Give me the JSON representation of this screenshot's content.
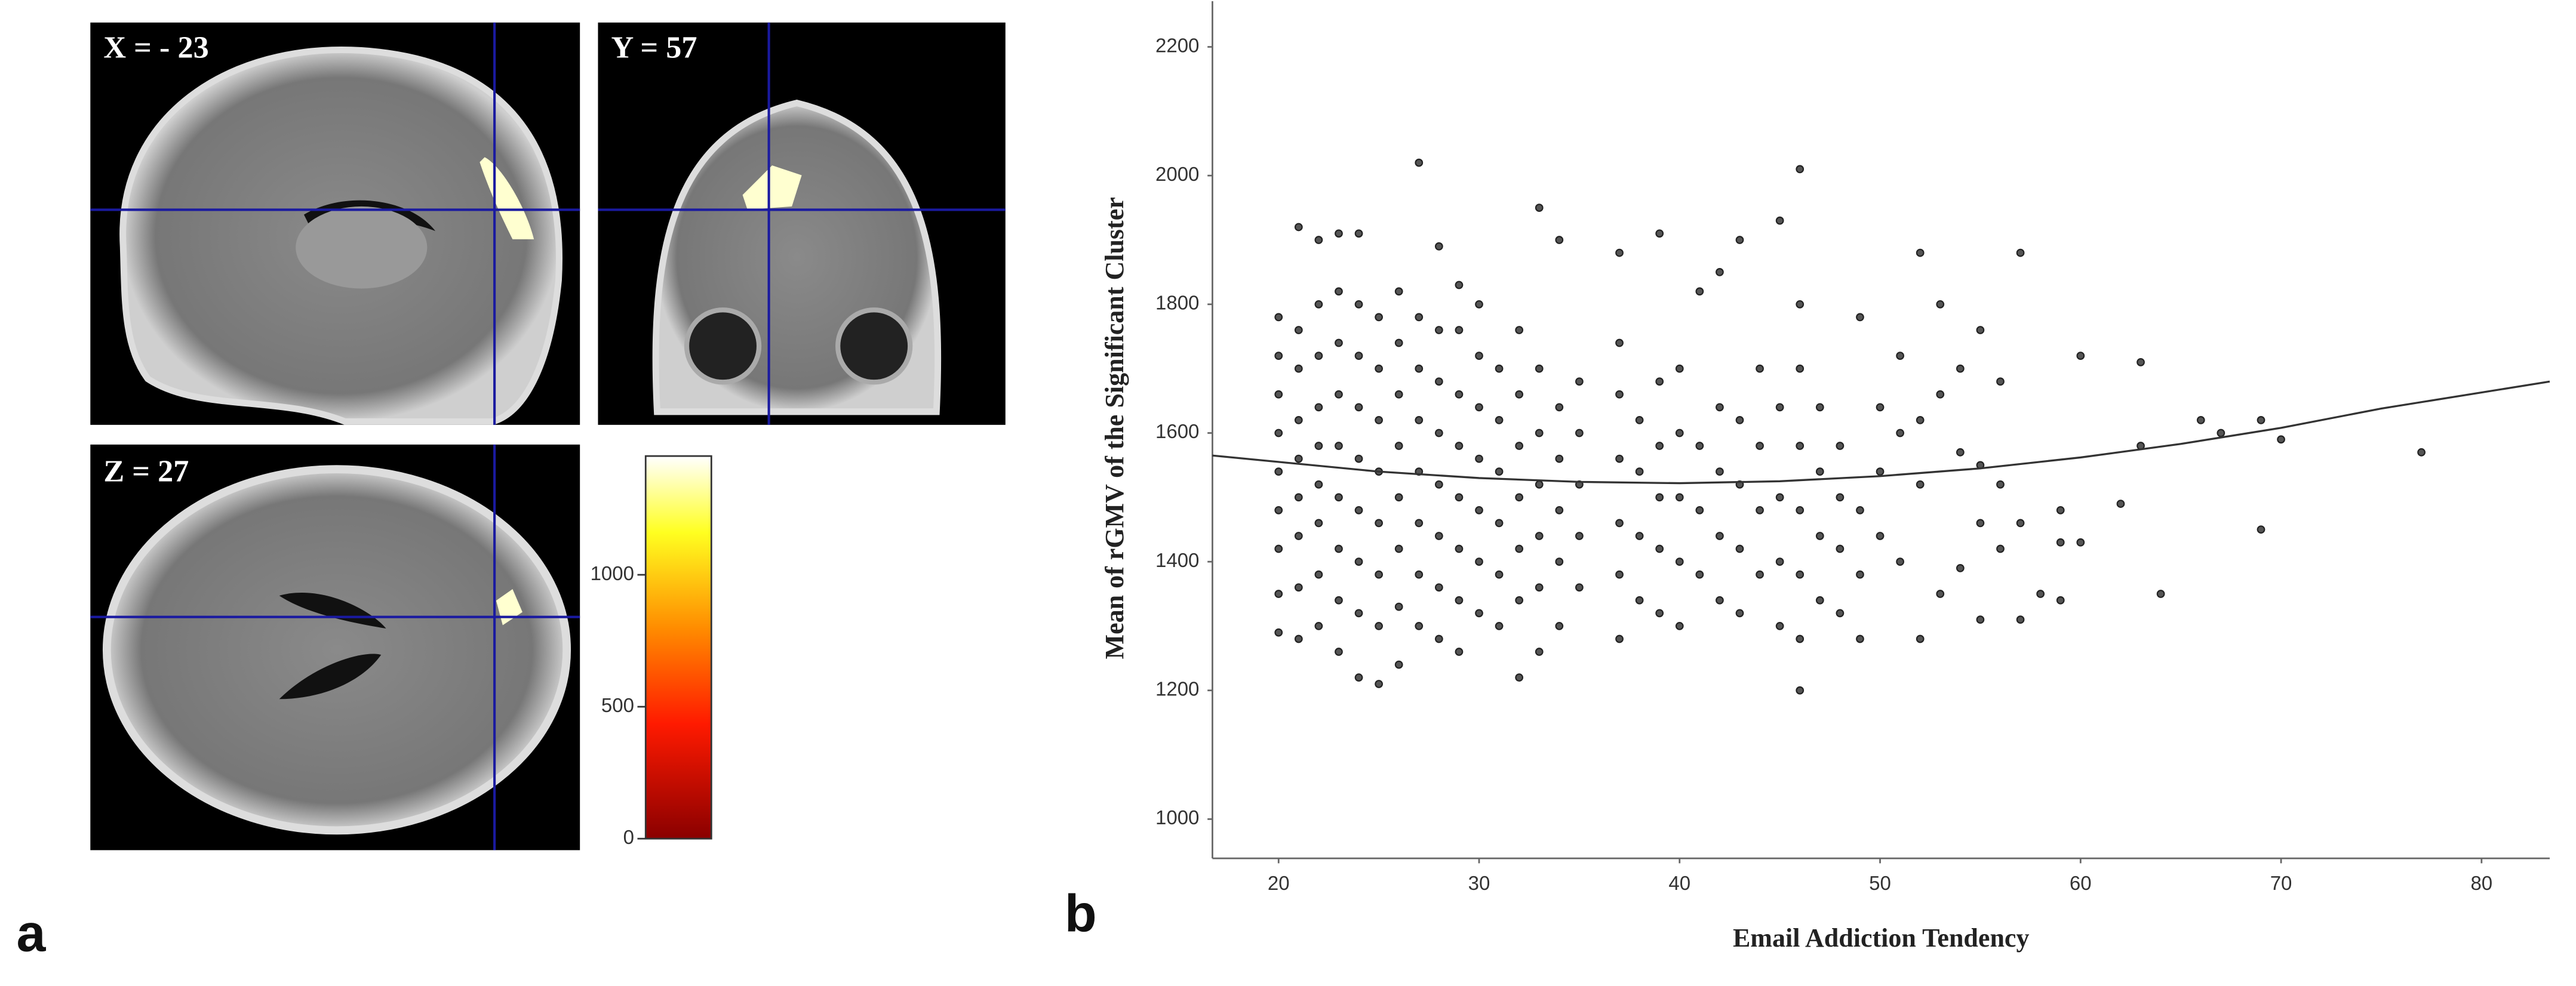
{
  "panel_a": {
    "label": "a",
    "slices": [
      "X = - 23",
      "Y = 57",
      "Z = 27"
    ],
    "colorbar": {
      "lim": [
        0,
        1450
      ],
      "ticks": [
        0,
        500,
        1000
      ]
    }
  },
  "chart_data": {
    "type": "scatter",
    "label": "b",
    "xlabel": "Email Addiction Tendency",
    "ylabel": "Mean of rGMV of the Significant Cluster",
    "xlim": [
      16.7,
      83.4
    ],
    "ylim": [
      939,
      2271
    ],
    "xticks": [
      20,
      30,
      40,
      50,
      60,
      70,
      80
    ],
    "yticks": [
      1000,
      1200,
      1400,
      1600,
      1800,
      2000,
      2200
    ],
    "color": "#555555",
    "x": [
      20,
      20,
      20,
      20,
      20,
      20,
      20,
      20,
      20,
      21,
      21,
      21,
      21,
      21,
      21,
      21,
      21,
      21,
      22,
      22,
      22,
      22,
      22,
      22,
      22,
      22,
      22,
      23,
      23,
      23,
      23,
      23,
      23,
      23,
      23,
      23,
      24,
      24,
      24,
      24,
      24,
      24,
      24,
      24,
      24,
      25,
      25,
      25,
      25,
      25,
      25,
      25,
      25,
      26,
      26,
      26,
      26,
      26,
      26,
      26,
      26,
      27,
      27,
      27,
      27,
      27,
      27,
      27,
      27,
      28,
      28,
      28,
      28,
      28,
      28,
      28,
      28,
      29,
      29,
      29,
      29,
      29,
      29,
      29,
      29,
      30,
      30,
      30,
      30,
      30,
      30,
      30,
      31,
      31,
      31,
      31,
      31,
      31,
      32,
      32,
      32,
      32,
      32,
      32,
      32,
      33,
      33,
      33,
      33,
      33,
      33,
      33,
      34,
      34,
      34,
      34,
      34,
      34,
      35,
      35,
      35,
      35,
      35,
      37,
      37,
      37,
      37,
      37,
      37,
      37,
      38,
      38,
      38,
      38,
      39,
      39,
      39,
      39,
      39,
      39,
      40,
      40,
      40,
      40,
      40,
      41,
      41,
      41,
      41,
      42,
      42,
      42,
      42,
      42,
      43,
      43,
      43,
      43,
      43,
      44,
      44,
      44,
      44,
      45,
      45,
      45,
      45,
      45,
      46,
      46,
      46,
      46,
      46,
      46,
      46,
      46,
      47,
      47,
      47,
      47,
      48,
      48,
      48,
      48,
      49,
      49,
      49,
      49,
      50,
      50,
      50,
      51,
      51,
      51,
      52,
      52,
      52,
      52,
      53,
      53,
      53,
      54,
      54,
      54,
      55,
      55,
      55,
      55,
      56,
      56,
      56,
      57,
      57,
      57,
      58,
      59,
      59,
      59,
      60,
      60,
      62,
      63,
      63,
      64,
      66,
      67,
      69,
      69,
      70,
      77
    ],
    "values": [
      1290,
      1350,
      1420,
      1480,
      1540,
      1600,
      1660,
      1720,
      1780,
      1280,
      1360,
      1440,
      1500,
      1560,
      1620,
      1700,
      1760,
      1920,
      1300,
      1380,
      1460,
      1520,
      1580,
      1640,
      1720,
      1800,
      1900,
      1260,
      1340,
      1420,
      1500,
      1580,
      1660,
      1740,
      1820,
      1910,
      1220,
      1320,
      1400,
      1480,
      1560,
      1640,
      1720,
      1800,
      1910,
      1210,
      1300,
      1380,
      1460,
      1540,
      1620,
      1700,
      1780,
      1240,
      1330,
      1420,
      1500,
      1580,
      1660,
      1740,
      1820,
      1300,
      1380,
      1460,
      1540,
      1620,
      1700,
      1780,
      2020,
      1280,
      1360,
      1440,
      1520,
      1600,
      1680,
      1760,
      1890,
      1260,
      1340,
      1420,
      1500,
      1580,
      1660,
      1760,
      1830,
      1320,
      1400,
      1480,
      1560,
      1640,
      1720,
      1800,
      1300,
      1380,
      1460,
      1540,
      1620,
      1700,
      1220,
      1340,
      1420,
      1500,
      1580,
      1660,
      1760,
      1260,
      1360,
      1440,
      1520,
      1600,
      1700,
      1950,
      1300,
      1400,
      1480,
      1560,
      1640,
      1900,
      1360,
      1440,
      1520,
      1600,
      1680,
      1280,
      1380,
      1460,
      1560,
      1660,
      1740,
      1880,
      1340,
      1440,
      1540,
      1620,
      1320,
      1420,
      1500,
      1580,
      1680,
      1910,
      1300,
      1400,
      1500,
      1600,
      1700,
      1380,
      1480,
      1580,
      1820,
      1340,
      1440,
      1540,
      1640,
      1850,
      1320,
      1420,
      1520,
      1620,
      1900,
      1380,
      1480,
      1580,
      1700,
      1300,
      1400,
      1500,
      1640,
      1930,
      1200,
      1280,
      1380,
      1480,
      1580,
      1700,
      1800,
      2010,
      1340,
      1440,
      1540,
      1640,
      1320,
      1420,
      1500,
      1580,
      1280,
      1380,
      1480,
      1780,
      1440,
      1540,
      1640,
      1400,
      1600,
      1720,
      1280,
      1520,
      1620,
      1880,
      1350,
      1660,
      1800,
      1390,
      1570,
      1700,
      1310,
      1460,
      1550,
      1760,
      1420,
      1520,
      1680,
      1310,
      1460,
      1880,
      1350,
      1340,
      1430,
      1480,
      1430,
      1720,
      1490,
      1580,
      1710,
      1350,
      1620,
      1600,
      1450,
      1620,
      1590,
      1570
    ],
    "fit": {
      "x": [
        16.7,
        25,
        30,
        35,
        40,
        45,
        50,
        55,
        60,
        65,
        70,
        75,
        83.4
      ],
      "values": [
        1565,
        1540,
        1530,
        1524,
        1522,
        1525,
        1533,
        1545,
        1562,
        1583,
        1608,
        1638,
        1680
      ]
    }
  }
}
